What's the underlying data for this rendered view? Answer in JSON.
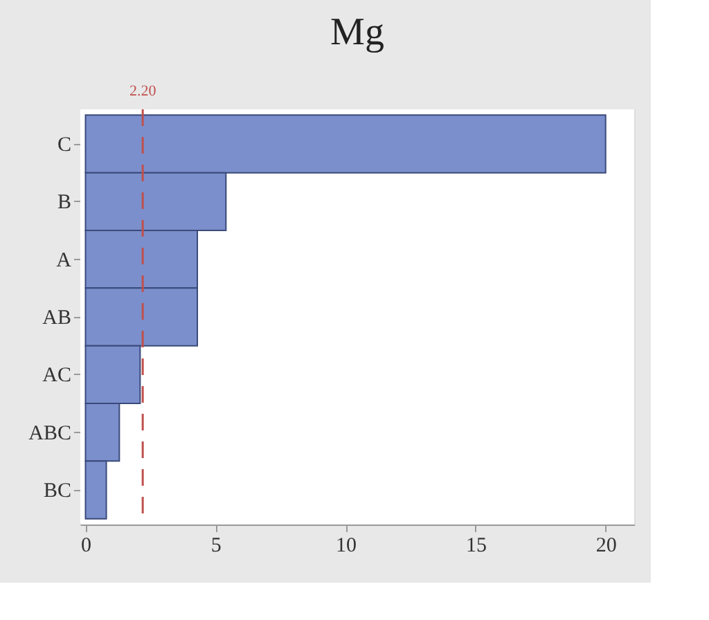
{
  "chart_data": {
    "type": "bar",
    "orientation": "horizontal",
    "title": "Mg",
    "categories": [
      "C",
      "B",
      "A",
      "AB",
      "AC",
      "ABC",
      "BC"
    ],
    "values": [
      20.0,
      5.4,
      4.3,
      4.3,
      2.1,
      1.3,
      0.8
    ],
    "color": "#7b8fcc",
    "xlim": [
      -0.2,
      21.1
    ],
    "xticks": [
      0,
      5,
      10,
      15,
      20
    ],
    "ref_lines": [
      {
        "axis": "x",
        "value": 2.2,
        "label": "2.20",
        "color": "#c0504d",
        "line_style": "dashed"
      }
    ],
    "data_labels": false
  }
}
